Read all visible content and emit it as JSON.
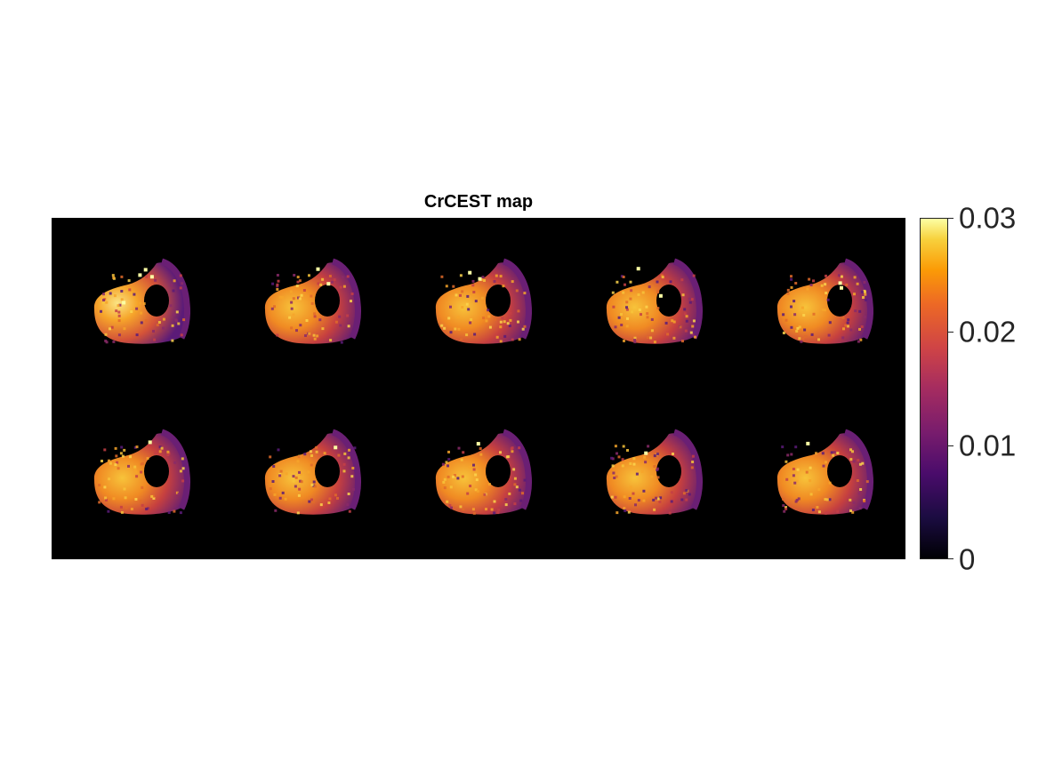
{
  "chart_data": {
    "type": "heatmap",
    "title": "CrCEST map",
    "layout": "2x5 montage",
    "n_slices": 10,
    "colormap": "inferno",
    "colorbar": {
      "min": 0,
      "max": 0.03,
      "ticks": [
        {
          "value": 0,
          "label": "0"
        },
        {
          "value": 0.01,
          "label": "0.01"
        },
        {
          "value": 0.02,
          "label": "0.02"
        },
        {
          "value": 0.03,
          "label": "0.03"
        }
      ]
    },
    "colors": {
      "background": "#000000",
      "low": "#3b0f70",
      "mid": "#dd513a",
      "high": "#fcffa4"
    },
    "grid": false
  }
}
